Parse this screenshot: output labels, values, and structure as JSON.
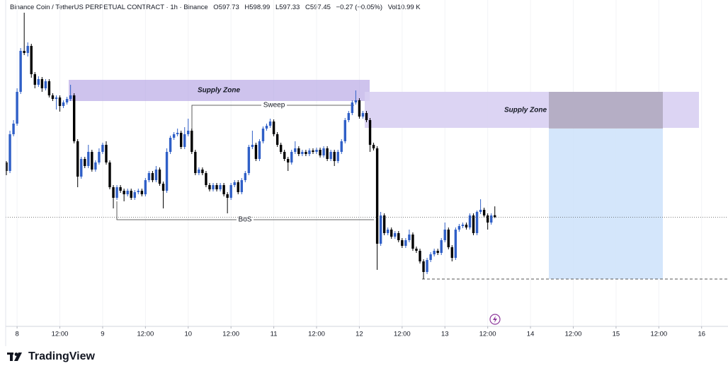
{
  "header": {
    "symbol": "Binance Coin / TetherUS PERPETUAL CONTRACT · 1h · Binance",
    "ohlc_labels": [
      "O",
      "H",
      "L",
      "C"
    ],
    "change": "−0.27 (−0.05%)",
    "volume": "Vol10.99 K"
  },
  "branding": "TradingView",
  "chart_data": {
    "type": "candlestick",
    "x": [
      -3,
      -2,
      -1,
      0,
      1,
      2,
      3,
      4,
      5,
      6,
      7,
      8,
      9,
      10,
      11,
      12,
      13,
      14,
      15,
      16,
      17,
      18,
      19,
      20,
      21,
      22,
      23,
      24,
      25,
      26,
      27,
      28,
      29,
      30,
      31,
      32,
      33,
      34,
      35,
      36,
      37,
      38,
      39,
      40,
      41,
      42,
      43,
      44,
      45,
      46,
      47,
      48,
      49,
      50,
      51,
      52,
      53,
      54,
      55,
      56,
      57,
      58,
      59,
      60,
      61,
      62,
      63,
      64,
      65,
      66,
      67,
      68,
      69,
      70,
      71,
      72,
      73,
      74,
      75,
      76,
      77,
      78,
      79,
      80,
      81,
      82,
      83,
      84,
      85,
      86,
      87,
      88,
      89,
      90,
      91,
      92,
      93,
      94,
      95,
      96,
      97,
      98,
      99,
      100,
      101,
      102,
      103,
      104,
      105,
      106,
      107,
      108,
      109,
      110,
      111,
      112,
      113,
      114,
      115,
      116,
      117,
      118,
      119,
      120,
      121,
      122,
      123,
      124,
      125,
      126,
      127,
      128,
      129,
      130,
      131,
      132,
      133,
      134
    ],
    "open": [
      605.2,
      604.0,
      609.2,
      610.7,
      615.2,
      621.0,
      620.7,
      621.7,
      617.7,
      616.2,
      617.0,
      615.7,
      616.7,
      614.7,
      614.2,
      614.4,
      613.2,
      613.7,
      614.2,
      614.7,
      608.2,
      603.2,
      605.7,
      604.7,
      606.7,
      604.2,
      605.2,
      606.7,
      607.7,
      605.2,
      601.7,
      600.2,
      601.7,
      601.2,
      600.7,
      601.2,
      600.2,
      601.0,
      601.2,
      600.7,
      602.7,
      603.7,
      602.7,
      604.2,
      602.2,
      601.2,
      606.7,
      608.7,
      609.2,
      609.4,
      607.4,
      609.2,
      609.7,
      606.7,
      603.7,
      604.2,
      603.7,
      602.0,
      601.4,
      602.0,
      601.4,
      602.0,
      600.7,
      600.2,
      602.0,
      602.4,
      601.0,
      602.7,
      603.7,
      607.4,
      607.7,
      605.7,
      608.2,
      610.0,
      610.4,
      611.0,
      609.2,
      607.7,
      606.7,
      605.7,
      605.2,
      606.7,
      607.2,
      606.4,
      606.7,
      606.4,
      606.9,
      606.7,
      607.0,
      606.2,
      607.2,
      605.7,
      606.7,
      605.4,
      606.7,
      608.2,
      611.2,
      612.2,
      613.7,
      614.0,
      611.7,
      612.2,
      611.2,
      607.7,
      607.2,
      593.7,
      597.7,
      595.2,
      595.7,
      594.7,
      595.2,
      594.2,
      593.4,
      594.2,
      595.0,
      593.0,
      592.7,
      591.2,
      589.7,
      591.4,
      592.2,
      592.7,
      592.4,
      594.2,
      595.7,
      593.2,
      591.7,
      595.7,
      596.2,
      596.4,
      596.0,
      597.7,
      595.2,
      598.2,
      598.5,
      597.7,
      596.7,
      597.73
    ],
    "high": [
      605.4,
      609.7,
      611.2,
      615.7,
      621.4,
      626.4,
      622.2,
      622.0,
      618.0,
      617.4,
      617.3,
      617.0,
      617.0,
      615.0,
      614.7,
      614.7,
      614.0,
      614.5,
      616.2,
      615.0,
      608.5,
      606.0,
      606.0,
      607.7,
      607.0,
      605.5,
      607.2,
      608.0,
      608.2,
      605.5,
      602.0,
      602.0,
      602.0,
      601.5,
      601.5,
      601.5,
      601.3,
      601.5,
      601.5,
      603.0,
      604.0,
      604.0,
      604.7,
      604.5,
      602.5,
      607.2,
      609.0,
      609.5,
      610.0,
      609.7,
      610.2,
      611.4,
      610.0,
      607.0,
      604.5,
      604.5,
      604.0,
      602.3,
      602.3,
      602.3,
      602.3,
      602.3,
      601.0,
      602.3,
      602.7,
      602.7,
      603.0,
      604.0,
      607.7,
      609.7,
      608.0,
      608.5,
      610.3,
      610.7,
      611.4,
      611.3,
      609.5,
      608.0,
      607.0,
      606.0,
      607.0,
      608.2,
      607.5,
      607.0,
      607.0,
      607.2,
      607.2,
      607.3,
      607.3,
      607.5,
      607.5,
      607.0,
      607.0,
      607.0,
      608.5,
      611.5,
      612.5,
      614.0,
      615.4,
      614.3,
      612.5,
      612.5,
      611.5,
      608.0,
      607.5,
      598.2,
      598.0,
      596.0,
      596.0,
      595.5,
      595.5,
      594.5,
      594.5,
      595.7,
      595.3,
      593.3,
      593.0,
      591.5,
      591.7,
      592.5,
      593.0,
      593.0,
      594.5,
      596.7,
      596.0,
      593.5,
      596.0,
      596.5,
      596.7,
      596.7,
      598.0,
      598.0,
      598.4,
      600.0,
      598.8,
      598.0,
      598.0,
      598.99
    ],
    "low": [
      603.4,
      603.7,
      608.9,
      610.4,
      614.9,
      620.4,
      620.2,
      617.2,
      615.7,
      615.9,
      615.2,
      615.4,
      614.4,
      613.9,
      612.7,
      612.4,
      612.9,
      613.4,
      613.9,
      607.9,
      601.7,
      602.9,
      604.4,
      604.4,
      603.9,
      603.9,
      604.9,
      606.4,
      604.9,
      601.4,
      598.7,
      599.9,
      600.9,
      599.7,
      600.4,
      599.9,
      599.9,
      600.7,
      600.4,
      600.4,
      602.4,
      602.4,
      602.4,
      601.9,
      598.7,
      600.9,
      606.4,
      608.4,
      608.9,
      607.1,
      607.1,
      608.9,
      606.4,
      603.4,
      603.4,
      603.4,
      601.7,
      601.1,
      601.1,
      601.1,
      601.1,
      600.4,
      598.0,
      599.9,
      601.7,
      600.7,
      600.7,
      602.4,
      603.4,
      607.1,
      605.4,
      605.4,
      607.9,
      609.7,
      610.1,
      608.9,
      607.4,
      606.4,
      605.4,
      604.0,
      604.9,
      606.4,
      606.1,
      606.1,
      606.1,
      606.1,
      606.4,
      606.4,
      605.9,
      605.9,
      605.4,
      605.4,
      604.7,
      605.1,
      606.4,
      607.9,
      610.9,
      611.9,
      613.4,
      611.4,
      611.4,
      610.9,
      606.7,
      606.9,
      590.0,
      593.4,
      594.9,
      594.9,
      594.4,
      594.4,
      593.9,
      593.1,
      593.1,
      593.9,
      592.7,
      592.4,
      590.9,
      588.7,
      589.4,
      591.1,
      591.9,
      592.1,
      592.1,
      593.9,
      592.9,
      591.2,
      591.4,
      595.4,
      595.9,
      595.7,
      595.7,
      594.9,
      594.9,
      597.9,
      597.4,
      595.7,
      596.4,
      597.33
    ],
    "close": [
      604.0,
      609.2,
      610.7,
      615.2,
      621.0,
      620.7,
      621.7,
      617.7,
      616.2,
      617.0,
      615.7,
      616.7,
      614.7,
      614.2,
      614.4,
      613.2,
      613.7,
      614.2,
      614.7,
      608.2,
      603.2,
      605.7,
      604.7,
      606.7,
      604.2,
      605.2,
      606.7,
      607.7,
      605.2,
      601.7,
      600.2,
      601.7,
      601.2,
      600.7,
      601.2,
      600.2,
      601.0,
      601.2,
      600.7,
      602.7,
      603.7,
      602.7,
      604.2,
      602.2,
      601.2,
      606.7,
      608.7,
      609.2,
      609.4,
      607.4,
      609.2,
      609.7,
      606.7,
      603.7,
      604.2,
      603.7,
      602.0,
      601.4,
      602.0,
      601.4,
      602.0,
      600.7,
      600.2,
      602.0,
      602.4,
      601.0,
      602.7,
      603.7,
      607.4,
      607.7,
      605.7,
      608.2,
      610.0,
      610.4,
      611.0,
      609.2,
      607.7,
      606.7,
      605.7,
      605.2,
      606.7,
      607.2,
      606.4,
      606.7,
      606.4,
      606.9,
      606.7,
      607.0,
      606.2,
      607.2,
      605.7,
      606.7,
      605.4,
      606.7,
      608.2,
      611.2,
      612.2,
      613.7,
      614.0,
      611.7,
      612.2,
      611.2,
      607.7,
      607.2,
      593.7,
      597.7,
      595.2,
      595.7,
      594.7,
      595.2,
      594.2,
      593.4,
      594.2,
      595.0,
      593.0,
      592.7,
      591.2,
      589.7,
      591.4,
      592.2,
      592.7,
      592.4,
      594.2,
      595.7,
      593.2,
      591.7,
      595.7,
      596.2,
      596.4,
      596.0,
      597.7,
      595.2,
      598.2,
      598.5,
      597.7,
      596.7,
      597.7,
      597.45
    ],
    "up_color": "#2f5fc7",
    "down_color": "#000000",
    "xlim": [
      -3.2,
      199.4
    ],
    "ylim": [
      582,
      628.2
    ],
    "xticks": [
      {
        "value": 0,
        "label": "8"
      },
      {
        "value": 12,
        "label": "12:00"
      },
      {
        "value": 24,
        "label": "9"
      },
      {
        "value": 36,
        "label": "12:00"
      },
      {
        "value": 48,
        "label": "10"
      },
      {
        "value": 60,
        "label": "12:00"
      },
      {
        "value": 72,
        "label": "11"
      },
      {
        "value": 84,
        "label": "12:00"
      },
      {
        "value": 96,
        "label": "12"
      },
      {
        "value": 108,
        "label": "12:00"
      },
      {
        "value": 120,
        "label": "13"
      },
      {
        "value": 132,
        "label": "12:00"
      },
      {
        "value": 144,
        "label": "14"
      },
      {
        "value": 156,
        "label": "12:00"
      },
      {
        "value": 168,
        "label": "15"
      },
      {
        "value": 180,
        "label": "12:00"
      },
      {
        "value": 192,
        "label": "16"
      }
    ],
    "grid": true,
    "annotations": [
      "Supply Zone",
      "Supply Zone",
      "Sweep",
      "BoS"
    ]
  }
}
